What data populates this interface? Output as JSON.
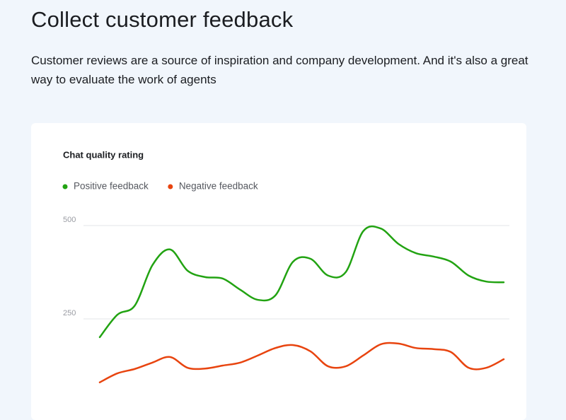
{
  "header": {
    "title": "Collect customer feedback",
    "description": "Customer reviews are a source of inspiration and company development. And it's also a great way to evaluate the work of agents"
  },
  "chart_data": {
    "type": "line",
    "title": "Chat quality rating",
    "categories": [
      null,
      null,
      null,
      null,
      null,
      null,
      null,
      null,
      null,
      null,
      null,
      null,
      null,
      null,
      null,
      null,
      null,
      null,
      null,
      null,
      null,
      null,
      null,
      null
    ],
    "series": [
      {
        "name": "Positive feedback",
        "color": "#22a312",
        "values": [
          201,
          261,
          286,
          394,
          436,
          379,
          362,
          358,
          328,
          301,
          313,
          403,
          411,
          366,
          375,
          485,
          492,
          451,
          426,
          417,
          403,
          366,
          350,
          348
        ]
      },
      {
        "name": "Negative feedback",
        "color": "#e8440f",
        "values": [
          80,
          104,
          116,
          133,
          148,
          119,
          117,
          125,
          133,
          152,
          172,
          180,
          163,
          123,
          123,
          152,
          182,
          184,
          172,
          169,
          161,
          119,
          119,
          142
        ]
      }
    ],
    "ylim": [
      0,
      500
    ],
    "yticks": [
      250,
      500
    ],
    "grid": true,
    "smooth": true
  }
}
